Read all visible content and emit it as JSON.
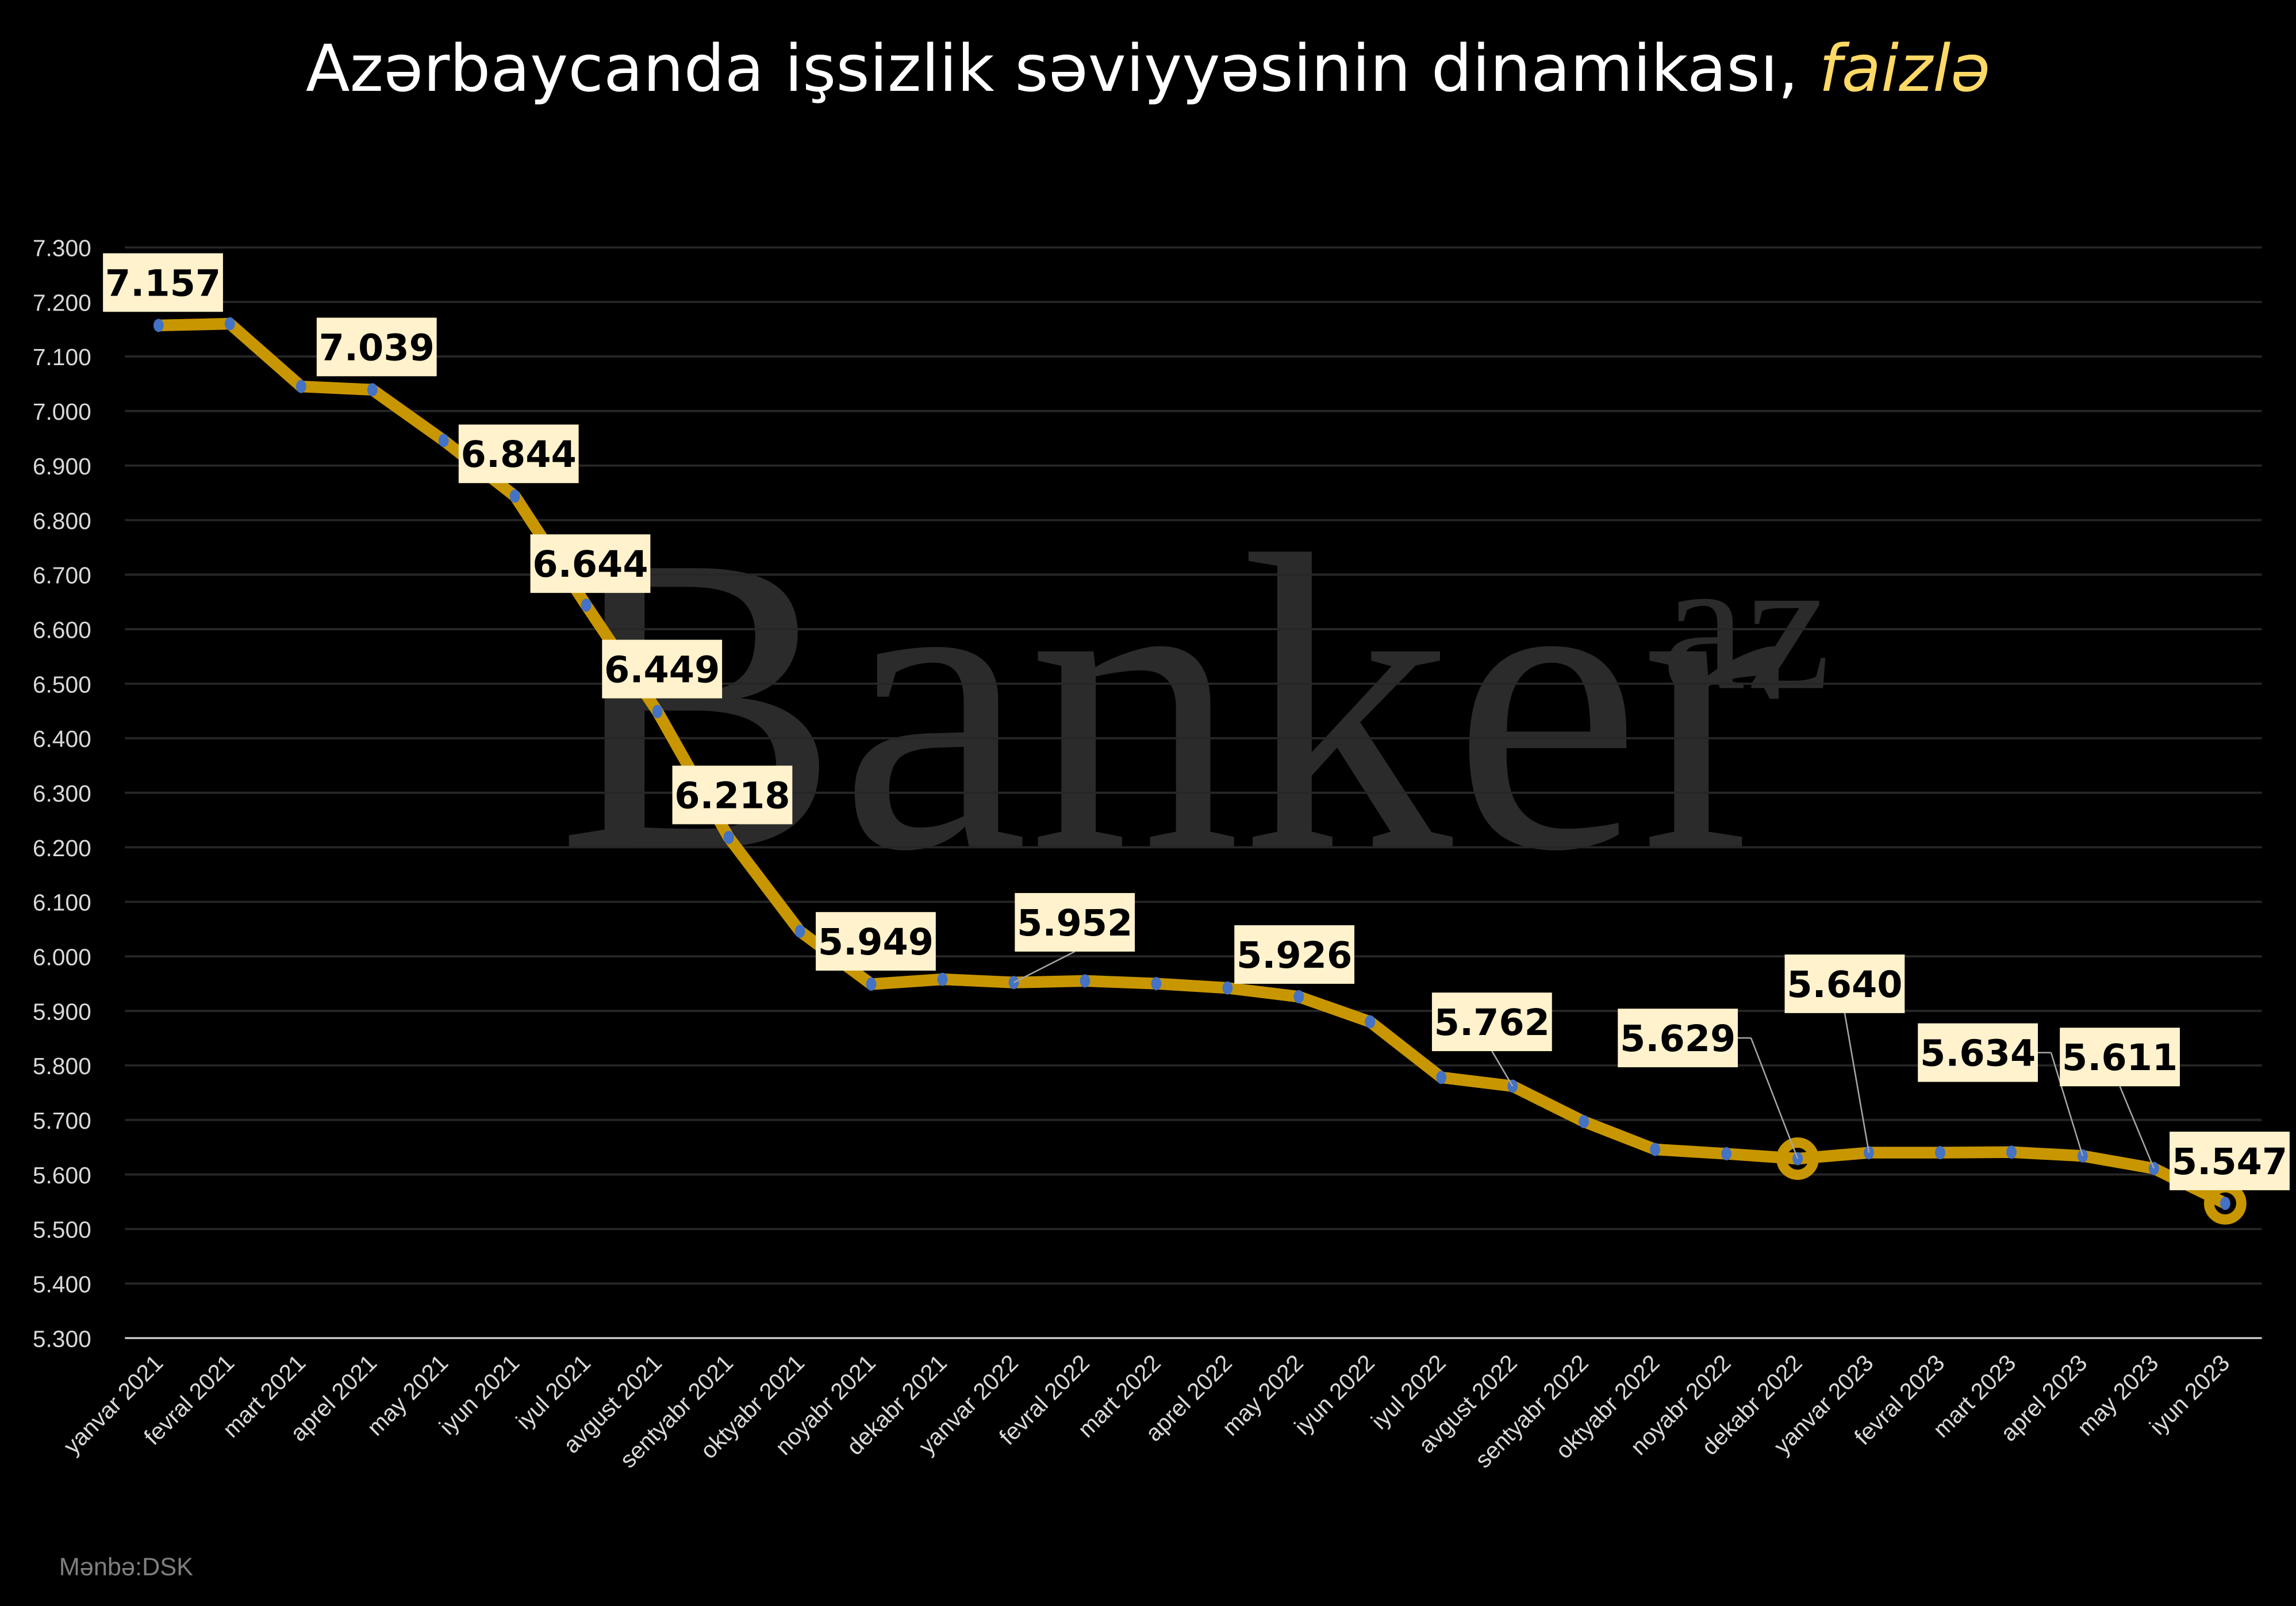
{
  "chart_data": {
    "type": "line",
    "title": "Azərbaycanda işsizlik səviyyəsinin dinamikası,",
    "title_suffix": "faizlə",
    "source": "Mənbə:DSK",
    "watermark": "Banker",
    "watermark_sup": "az",
    "xlabel": "",
    "ylabel": "",
    "ylim": [
      5.3,
      7.3
    ],
    "yticks": [
      "5.300",
      "5.400",
      "5.500",
      "5.600",
      "5.700",
      "5.800",
      "5.900",
      "6.000",
      "6.100",
      "6.200",
      "6.300",
      "6.400",
      "6.500",
      "6.600",
      "6.700",
      "6.800",
      "6.900",
      "7.000",
      "7.100",
      "7.200",
      "7.300"
    ],
    "grid": true,
    "categories": [
      "yanvar 2021",
      "fevral 2021",
      "mart 2021",
      "aprel 2021",
      "may 2021",
      "iyun 2021",
      "iyul 2021",
      "avgust 2021",
      "sentyabr 2021",
      "oktyabr 2021",
      "noyabr 2021",
      "dekabr 2021",
      "yanvar 2022",
      "fevral 2022",
      "mart 2022",
      "aprel 2022",
      "may 2022",
      "iyun 2022",
      "iyul 2022",
      "avgust 2022",
      "sentyabr 2022",
      "oktyabr 2022",
      "noyabr 2022",
      "dekabr 2022",
      "yanvar 2023",
      "fevral 2023",
      "mart 2023",
      "aprel 2023",
      "may 2023",
      "iyun 2023"
    ],
    "values": [
      7.157,
      7.16,
      7.045,
      7.039,
      6.946,
      6.844,
      6.644,
      6.449,
      6.218,
      6.046,
      5.949,
      5.958,
      5.952,
      5.955,
      5.95,
      5.942,
      5.926,
      5.88,
      5.778,
      5.762,
      5.697,
      5.646,
      5.638,
      5.629,
      5.64,
      5.64,
      5.641,
      5.634,
      5.611,
      5.547
    ],
    "data_labels": [
      {
        "index": 0,
        "text": "7.157"
      },
      {
        "index": 3,
        "text": "7.039"
      },
      {
        "index": 5,
        "text": "6.844"
      },
      {
        "index": 6,
        "text": "6.644"
      },
      {
        "index": 7,
        "text": "6.449"
      },
      {
        "index": 8,
        "text": "6.218"
      },
      {
        "index": 10,
        "text": "5.949"
      },
      {
        "index": 12,
        "text": "5.952"
      },
      {
        "index": 16,
        "text": "5.926"
      },
      {
        "index": 19,
        "text": "5.762"
      },
      {
        "index": 23,
        "text": "5.629"
      },
      {
        "index": 24,
        "text": "5.640"
      },
      {
        "index": 27,
        "text": "5.634"
      },
      {
        "index": 28,
        "text": "5.611"
      },
      {
        "index": 29,
        "text": "5.547"
      }
    ],
    "highlighted_points": [
      23,
      29
    ],
    "colors": {
      "background": "#000000",
      "line": "#c89600",
      "marker": "#4472c4",
      "label_box": "#fff2cc",
      "title": "#ffffff",
      "title_accent": "#ffd966",
      "grid": "#262626",
      "watermark": "#2b2b2b"
    }
  }
}
